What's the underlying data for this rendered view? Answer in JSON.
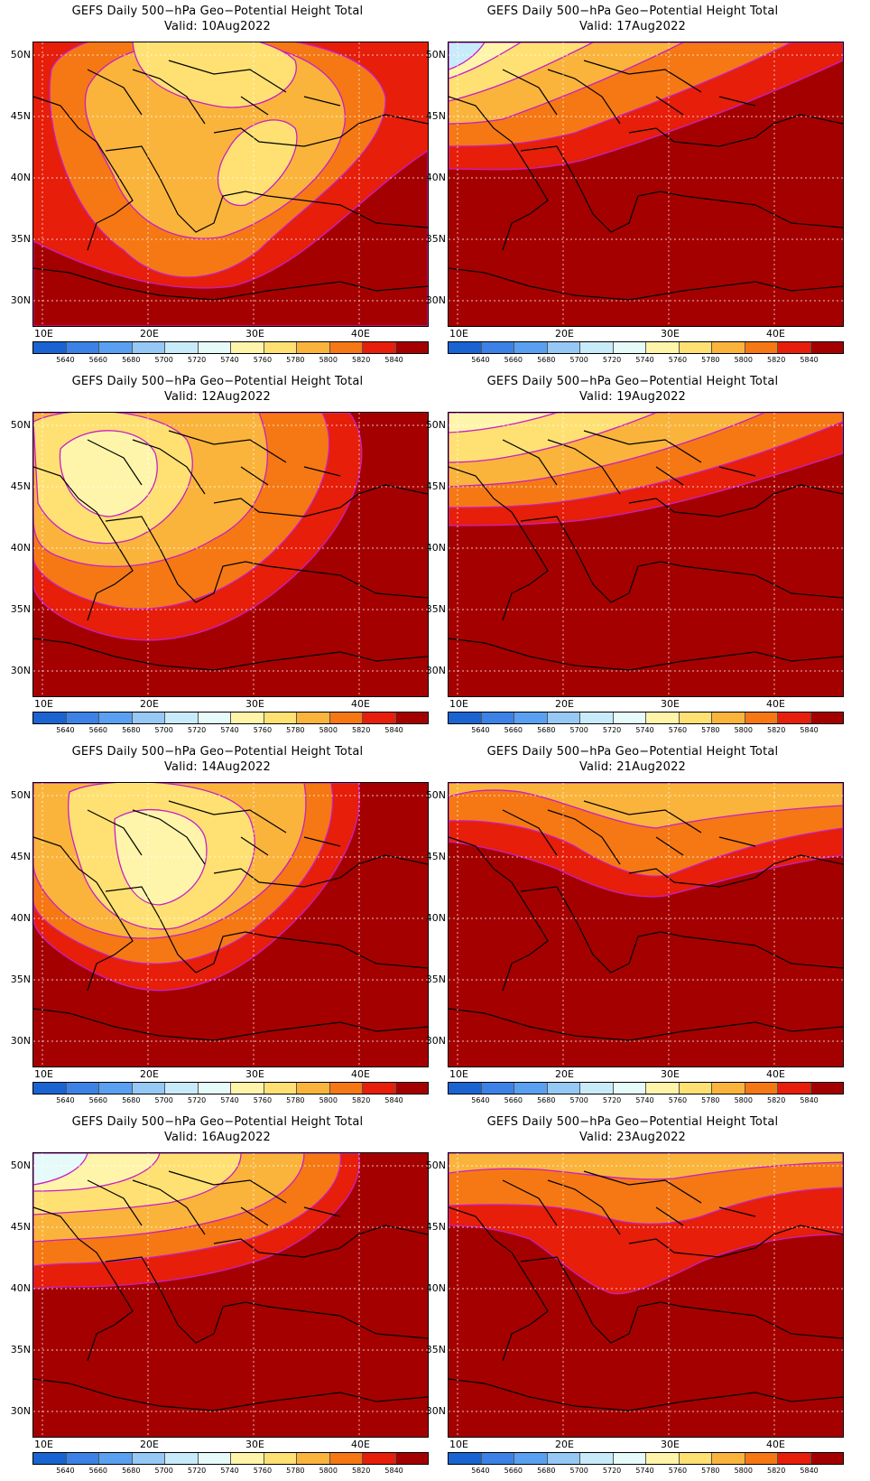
{
  "panels": [
    {
      "title": "GEFS Daily 500−hPa Geo−Potential Height Total",
      "valid": "Valid:  10Aug2022"
    },
    {
      "title": "GEFS Daily 500−hPa Geo−Potential Height Total",
      "valid": "Valid:  17Aug2022"
    },
    {
      "title": "GEFS Daily 500−hPa Geo−Potential Height Total",
      "valid": "Valid:  12Aug2022"
    },
    {
      "title": "GEFS Daily 500−hPa Geo−Potential Height Total",
      "valid": "Valid:  19Aug2022"
    },
    {
      "title": "GEFS Daily 500−hPa Geo−Potential Height Total",
      "valid": "Valid:  14Aug2022"
    },
    {
      "title": "GEFS Daily 500−hPa Geo−Potential Height Total",
      "valid": "Valid:  21Aug2022"
    },
    {
      "title": "GEFS Daily 500−hPa Geo−Potential Height Total",
      "valid": "Valid:  16Aug2022"
    },
    {
      "title": "GEFS Daily 500−hPa Geo−Potential Height Total",
      "valid": "Valid:  23Aug2022"
    }
  ],
  "lat_labels": [
    "50N",
    "45N",
    "40N",
    "35N",
    "30N"
  ],
  "lon_labels": [
    "10E",
    "20E",
    "30E",
    "40E"
  ],
  "colorbar": {
    "labels": [
      "5640",
      "5660",
      "5680",
      "5700",
      "5720",
      "5740",
      "5760",
      "5780",
      "5800",
      "5820",
      "5840"
    ],
    "colors": [
      "#1a64d2",
      "#3c82e6",
      "#5aa0f0",
      "#96c8f5",
      "#c8ebfa",
      "#e6fafa",
      "#fff5aa",
      "#ffe173",
      "#fab43c",
      "#f57814",
      "#e61e0a",
      "#a50000"
    ]
  },
  "contour_color": "#c81ec8"
}
